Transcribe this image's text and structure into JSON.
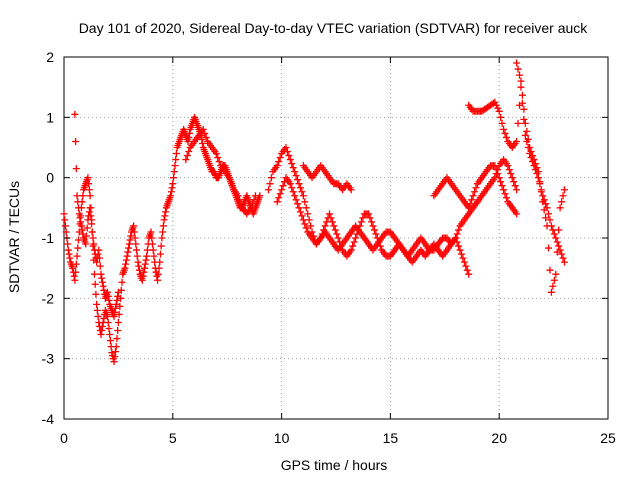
{
  "chart_data": {
    "type": "scatter",
    "title": "Day 101 of 2020, Sidereal Day-to-day VTEC variation (SDTVAR) for receiver auck",
    "xlabel": "GPS time / hours",
    "ylabel": "SDTVAR / TECUs",
    "xlim": [
      0,
      25
    ],
    "ylim": [
      -4,
      2
    ],
    "xticks": [
      "0",
      "5",
      "10",
      "15",
      "20",
      "25"
    ],
    "yticks": [
      "-4",
      "-3",
      "-2",
      "-1",
      "0",
      "1",
      "2"
    ],
    "grid": true,
    "marker": "+",
    "color": "#ff0000",
    "series": [
      {
        "name": "SDTVAR",
        "segments": [
          {
            "x": [
              0.0,
              0.1,
              0.2,
              0.3,
              0.4,
              0.5,
              0.6,
              0.7,
              0.8,
              0.9,
              1.0,
              1.1,
              1.2,
              1.3,
              1.4,
              1.5,
              1.6,
              1.7,
              1.8,
              1.9,
              2.0,
              2.1,
              2.2,
              2.3,
              2.4,
              2.5,
              2.6,
              2.7,
              2.8,
              2.9,
              3.0,
              3.1,
              3.2,
              3.3,
              3.4,
              3.5,
              3.6,
              3.7,
              3.8,
              3.9,
              4.0,
              4.1,
              4.2,
              4.3,
              4.4,
              4.5,
              4.6,
              4.7,
              4.8,
              4.9,
              5.0,
              5.1,
              5.2,
              5.3,
              5.4,
              5.5,
              5.6,
              5.7,
              5.8,
              5.9,
              6.0,
              6.1,
              6.2,
              6.3,
              6.4,
              6.5,
              6.6,
              6.7,
              6.8,
              6.9,
              7.0,
              7.1,
              7.2,
              7.3,
              7.4,
              7.5,
              7.6,
              7.7,
              7.8,
              7.9,
              8.0,
              8.1,
              8.2,
              8.3,
              8.4,
              8.5,
              8.6,
              8.7,
              8.8,
              8.9,
              9.0
            ],
            "y": [
              -0.6,
              -0.9,
              -1.2,
              -1.4,
              -1.5,
              -1.7,
              -1.3,
              -0.9,
              -0.5,
              -0.2,
              -0.1,
              0.0,
              -0.3,
              -0.9,
              -1.6,
              -2.1,
              -2.4,
              -2.6,
              -2.4,
              -2.2,
              -2.3,
              -2.6,
              -2.9,
              -3.05,
              -2.8,
              -2.4,
              -2.0,
              -1.6,
              -1.5,
              -1.3,
              -1.1,
              -0.9,
              -0.8,
              -1.1,
              -1.4,
              -1.6,
              -1.7,
              -1.5,
              -1.3,
              -1.0,
              -0.9,
              -1.2,
              -1.5,
              -1.7,
              -1.4,
              -1.0,
              -0.7,
              -0.5,
              -0.4,
              -0.3,
              -0.1,
              0.2,
              0.5,
              0.6,
              0.7,
              0.8,
              0.7,
              0.6,
              0.8,
              0.9,
              1.0,
              0.9,
              0.8,
              0.7,
              0.5,
              0.4,
              0.3,
              0.2,
              0.1,
              0.1,
              0.0,
              0.0,
              0.1,
              0.2,
              0.2,
              0.1,
              0.0,
              -0.1,
              -0.2,
              -0.3,
              -0.4,
              -0.5,
              -0.5,
              -0.4,
              -0.3,
              -0.4,
              -0.5,
              -0.6,
              -0.5,
              -0.4,
              -0.3
            ]
          },
          {
            "x": [
              0.5,
              0.6,
              0.7,
              0.8,
              0.9,
              1.0,
              1.1,
              1.2,
              1.3,
              1.4,
              1.5,
              1.6,
              1.7,
              1.8,
              1.9,
              2.0,
              2.1,
              2.2,
              2.3,
              2.4,
              2.5
            ],
            "y": [
              1.05,
              -0.3,
              -0.6,
              -0.8,
              -1.0,
              -1.1,
              -0.7,
              -0.5,
              -0.9,
              -1.2,
              -1.4,
              -1.2,
              -1.6,
              -1.8,
              -2.0,
              -1.9,
              -2.1,
              -2.2,
              -2.3,
              -2.1,
              -1.9
            ]
          },
          {
            "x": [
              5.6,
              5.8,
              6.0,
              6.2,
              6.4,
              6.6,
              6.8,
              7.0,
              7.2,
              7.4,
              7.6,
              7.8,
              8.0,
              8.2,
              8.4,
              8.6,
              8.8
            ],
            "y": [
              0.3,
              0.5,
              0.6,
              0.7,
              0.8,
              0.6,
              0.5,
              0.4,
              0.2,
              0.1,
              0.0,
              -0.2,
              -0.3,
              -0.5,
              -0.6,
              -0.5,
              -0.3
            ]
          },
          {
            "x": [
              9.4,
              9.6,
              9.8,
              10.0,
              10.2,
              10.4,
              10.6,
              10.8,
              11.0,
              11.2,
              11.4,
              11.6,
              11.8,
              12.0,
              12.2,
              12.4,
              12.6,
              12.8,
              13.0,
              13.2,
              13.4,
              13.6,
              13.8,
              14.0,
              14.2,
              14.4,
              14.6,
              14.8,
              15.0,
              15.2,
              15.4,
              15.6,
              15.8,
              16.0,
              16.2,
              16.4,
              16.6,
              16.8,
              17.0,
              17.2,
              17.4,
              17.6,
              17.8,
              18.0,
              18.2,
              18.4,
              18.6
            ],
            "y": [
              -0.2,
              0.1,
              0.2,
              0.4,
              0.5,
              0.3,
              0.1,
              -0.1,
              -0.3,
              -0.6,
              -0.9,
              -1.1,
              -1.0,
              -0.8,
              -0.6,
              -0.8,
              -1.0,
              -1.2,
              -1.3,
              -1.2,
              -1.0,
              -0.8,
              -0.6,
              -0.6,
              -0.8,
              -1.0,
              -1.2,
              -1.3,
              -1.3,
              -1.2,
              -1.1,
              -1.2,
              -1.3,
              -1.4,
              -1.3,
              -1.2,
              -1.3,
              -1.2,
              -1.1,
              -1.2,
              -1.3,
              -1.2,
              -1.1,
              -1.0,
              -1.2,
              -1.4,
              -1.6
            ]
          },
          {
            "x": [
              9.8,
              10.0,
              10.2,
              10.4,
              10.6,
              10.8,
              11.0,
              11.2,
              11.4,
              11.6,
              11.8,
              12.0,
              12.2,
              12.4,
              12.6,
              12.8,
              13.0,
              13.2,
              13.4,
              13.6,
              13.8,
              14.0,
              14.2,
              14.4,
              14.6,
              14.8,
              15.0,
              15.2,
              15.4,
              15.6,
              15.8,
              16.0,
              16.2,
              16.4,
              16.6,
              16.8,
              17.0,
              17.2,
              17.4,
              17.6,
              17.8,
              18.0,
              18.2,
              18.4,
              18.6,
              18.8,
              19.0,
              19.2,
              19.4,
              19.6,
              19.8,
              20.0,
              20.2,
              20.4,
              20.6,
              20.8
            ],
            "y": [
              -0.4,
              -0.2,
              0.0,
              -0.1,
              -0.3,
              -0.5,
              -0.7,
              -0.9,
              -1.0,
              -1.1,
              -1.0,
              -0.9,
              -1.0,
              -1.1,
              -1.2,
              -1.1,
              -1.0,
              -0.9,
              -0.8,
              -0.9,
              -1.0,
              -1.1,
              -1.2,
              -1.1,
              -1.0,
              -0.9,
              -0.9,
              -1.0,
              -1.1,
              -1.2,
              -1.3,
              -1.2,
              -1.1,
              -1.0,
              -1.1,
              -1.2,
              -1.2,
              -1.1,
              -1.0,
              -1.0,
              -1.1,
              -1.0,
              -0.8,
              -0.7,
              -0.6,
              -0.5,
              -0.4,
              -0.3,
              -0.2,
              -0.1,
              0.0,
              0.2,
              0.3,
              0.2,
              0.0,
              -0.2
            ]
          },
          {
            "x": [
              11.0,
              11.2,
              11.4,
              11.6,
              11.8,
              12.0,
              12.2,
              12.4,
              12.6,
              12.8,
              13.0,
              13.2
            ],
            "y": [
              0.2,
              0.1,
              0.0,
              0.1,
              0.2,
              0.1,
              0.0,
              -0.1,
              -0.1,
              -0.2,
              -0.1,
              -0.2
            ]
          },
          {
            "x": [
              17.0,
              17.2,
              17.4,
              17.6,
              17.8,
              18.0,
              18.2,
              18.4,
              18.6,
              18.8,
              19.0,
              19.2,
              19.4,
              19.6,
              19.8,
              20.0,
              20.2,
              20.4,
              20.6,
              20.8
            ],
            "y": [
              -0.3,
              -0.2,
              -0.1,
              0.0,
              -0.1,
              -0.2,
              -0.3,
              -0.4,
              -0.5,
              -0.3,
              -0.1,
              0.0,
              0.1,
              0.2,
              0.2,
              0.0,
              -0.2,
              -0.4,
              -0.5,
              -0.6
            ]
          },
          {
            "x": [
              18.6,
              18.8,
              19.0,
              19.2,
              19.4,
              19.6,
              19.8,
              20.0,
              20.2,
              20.4,
              20.6,
              20.8,
              21.0,
              21.2,
              21.4,
              21.6,
              21.8,
              22.0,
              22.2,
              22.4,
              22.6,
              22.8,
              23.0
            ],
            "y": [
              1.2,
              1.1,
              1.1,
              1.1,
              1.15,
              1.2,
              1.25,
              1.1,
              0.8,
              0.6,
              0.5,
              0.6,
              1.5,
              0.7,
              0.4,
              0.2,
              0.0,
              -0.3,
              -0.5,
              -0.8,
              -1.0,
              -1.2,
              -1.4
            ]
          },
          {
            "x": [
              20.8,
              21.0,
              21.2,
              21.4,
              21.6,
              21.8,
              22.0,
              22.2,
              22.4,
              22.6,
              22.8,
              23.0
            ],
            "y": [
              1.9,
              1.6,
              0.9,
              0.5,
              0.3,
              0.1,
              -0.4,
              -0.8,
              -1.9,
              -1.6,
              -0.5,
              -0.2
            ]
          }
        ]
      }
    ]
  }
}
